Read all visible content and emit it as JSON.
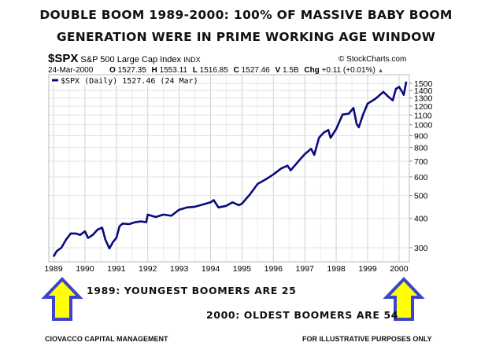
{
  "title": {
    "line1": "DOUBLE BOOM 1989-2000: 100% OF MASSIVE BABY BOOM",
    "line2": "GENERATION WERE IN PRIME WORKING AGE WINDOW"
  },
  "header": {
    "symbol": "$SPX",
    "name": "S&P 500 Large Cap Index",
    "exchange": "INDX",
    "credit": "© StockCharts.com",
    "date": "24-Mar-2000",
    "open_label": "O",
    "open": "1527.35",
    "high_label": "H",
    "high": "1553.11",
    "low_label": "L",
    "low": "1516.85",
    "close_label": "C",
    "close": "1527.46",
    "volume_label": "V",
    "volume": "1.5B",
    "change_label": "Chg",
    "change": "+0.11 (+0.01%)"
  },
  "annotations": {
    "left": "1989: YOUNGEST BOOMERS ARE 25",
    "right": "2000: OLDEST BOOMERS ARE 54"
  },
  "footer": {
    "left": "CIOVACCO CAPITAL MANAGEMENT",
    "right": "FOR ILLUSTRATIVE PURPOSES ONLY"
  },
  "colors": {
    "line": "#0a0a80",
    "arrow_fill": "#ffff00",
    "arrow_stroke": "#3b44cc",
    "grid": "#d0d0d0",
    "up_triangle": "#2e7d32"
  },
  "icons": {
    "arrows": "up-arrow-icon",
    "change": "triangle-up-icon"
  },
  "chart_data": {
    "type": "line",
    "yscale": "log",
    "ylim": [
      270,
      1560
    ],
    "xlim": [
      1989.0,
      2000.3
    ],
    "grid": true,
    "legend": "top-left",
    "xticks": [
      "1989",
      "1990",
      "1991",
      "1992",
      "1993",
      "1994",
      "1995",
      "1996",
      "1997",
      "1998",
      "1999",
      "2000"
    ],
    "yticks": [
      300,
      400,
      500,
      600,
      700,
      800,
      900,
      1000,
      1100,
      1200,
      1300,
      1400,
      1500
    ],
    "series": [
      {
        "name": "$SPX (Daily) 1527.46 (24 Mar)",
        "x": [
          1989.0,
          1989.1,
          1989.25,
          1989.4,
          1989.55,
          1989.7,
          1989.85,
          1990.0,
          1990.1,
          1990.25,
          1990.4,
          1990.55,
          1990.65,
          1990.78,
          1990.9,
          1991.0,
          1991.1,
          1991.2,
          1991.4,
          1991.6,
          1991.8,
          1991.95,
          1992.0,
          1992.25,
          1992.5,
          1992.75,
          1993.0,
          1993.25,
          1993.5,
          1993.75,
          1994.0,
          1994.1,
          1994.25,
          1994.5,
          1994.7,
          1994.9,
          1995.0,
          1995.25,
          1995.5,
          1995.75,
          1996.0,
          1996.25,
          1996.45,
          1996.55,
          1996.8,
          1997.0,
          1997.2,
          1997.3,
          1997.45,
          1997.6,
          1997.75,
          1997.82,
          1998.0,
          1998.2,
          1998.4,
          1998.55,
          1998.65,
          1998.72,
          1998.85,
          1999.0,
          1999.25,
          1999.5,
          1999.65,
          1999.8,
          1999.9,
          2000.0,
          2000.1,
          2000.15,
          2000.23
        ],
        "values": [
          275,
          290,
          300,
          325,
          345,
          345,
          340,
          352,
          330,
          340,
          358,
          365,
          325,
          298,
          318,
          330,
          370,
          380,
          378,
          385,
          388,
          385,
          415,
          405,
          415,
          410,
          435,
          445,
          448,
          458,
          468,
          478,
          445,
          452,
          468,
          455,
          462,
          505,
          560,
          585,
          615,
          652,
          670,
          640,
          700,
          750,
          790,
          745,
          880,
          925,
          950,
          880,
          960,
          1105,
          1115,
          1180,
          1010,
          975,
          1100,
          1230,
          1290,
          1380,
          1320,
          1270,
          1420,
          1450,
          1380,
          1340,
          1527
        ]
      }
    ]
  }
}
